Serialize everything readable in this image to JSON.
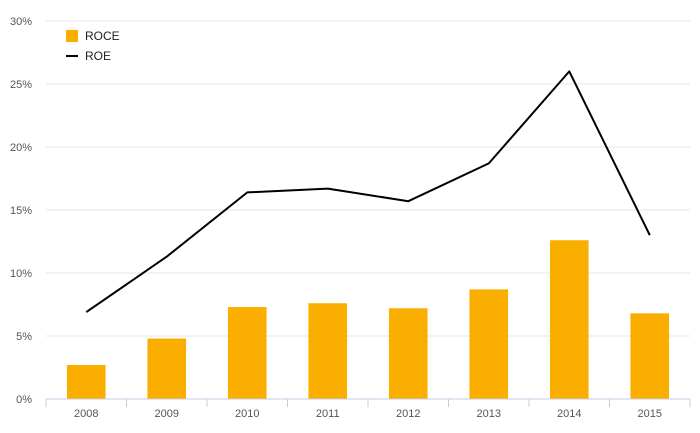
{
  "chart_data": {
    "type": "bar",
    "title": "",
    "xlabel": "",
    "ylabel": "",
    "categories": [
      "2008",
      "2009",
      "2010",
      "2011",
      "2012",
      "2013",
      "2014",
      "2015"
    ],
    "ylim": [
      0,
      30
    ],
    "yticks": [
      0,
      5,
      10,
      15,
      20,
      25,
      30
    ],
    "ytick_labels": [
      "0%",
      "5%",
      "10%",
      "15%",
      "20%",
      "25%",
      "30%"
    ],
    "grid": true,
    "legend_position": "top-left",
    "series": [
      {
        "name": "ROCE",
        "type": "bar",
        "color": "#F9AE00",
        "values": [
          2.7,
          4.8,
          7.3,
          7.6,
          7.2,
          8.7,
          12.6,
          6.8
        ]
      },
      {
        "name": "ROE",
        "type": "line",
        "color": "#000000",
        "values": [
          6.9,
          11.3,
          16.4,
          16.7,
          15.7,
          18.7,
          26.0,
          13.0
        ]
      }
    ]
  }
}
